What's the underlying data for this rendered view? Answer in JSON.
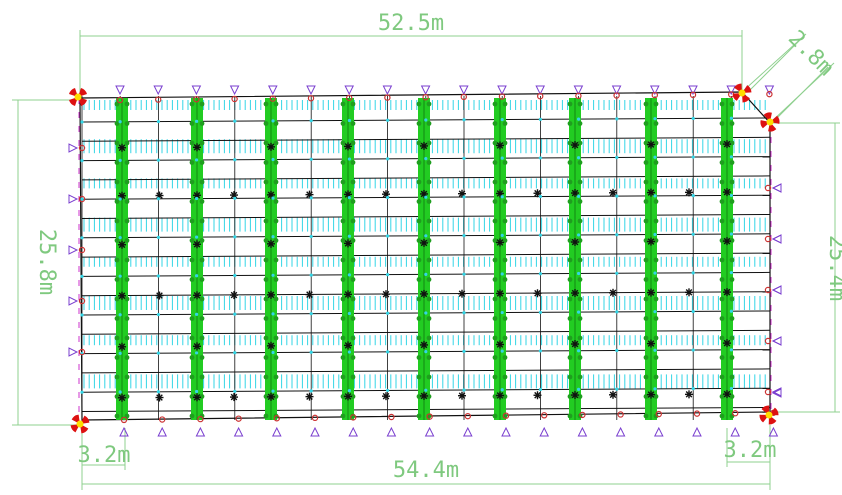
{
  "dimensions": {
    "top_length": "52.5m",
    "bottom_length": "54.4m",
    "left_height": "25.8m",
    "right_height": "25.4m",
    "corner_chamfer": "2.8m",
    "bottom_left_offset": "3.2m",
    "bottom_right_offset": "3.2m"
  },
  "colors": {
    "dimension": "#8fd08f",
    "grid": "#111111",
    "beam": "#22cc22",
    "hatch": "#33d6e6",
    "support_node": "#cc3333",
    "roller": "#7a3fcf",
    "column_node": "#111111",
    "anchor_red": "#dd1111",
    "anchor_yellow": "#ffdd00"
  },
  "icons": {
    "column": "asterisk-node-icon",
    "support": "circle-node-icon",
    "roller": "triangle-support-icon",
    "anchor": "corner-anchor-icon"
  }
}
